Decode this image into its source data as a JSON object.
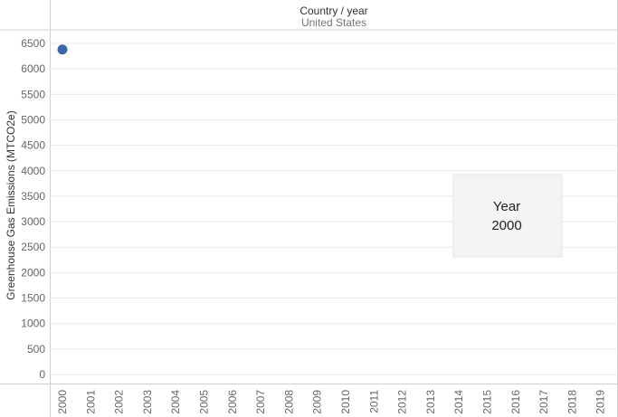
{
  "chart_data": {
    "type": "scatter",
    "header": {
      "title": "Country / year",
      "subtitle": "United States"
    },
    "ylabel": "Greenhouse Gas Emissions (MTCO2e)",
    "ylim": [
      0,
      6500
    ],
    "y_ticks": [
      0,
      500,
      1000,
      1500,
      2000,
      2500,
      3000,
      3500,
      4000,
      4500,
      5000,
      5500,
      6000,
      6500
    ],
    "x_categories": [
      "2000",
      "2001",
      "2002",
      "2003",
      "2004",
      "2005",
      "2006",
      "2007",
      "2008",
      "2009",
      "2010",
      "2011",
      "2012",
      "2013",
      "2014",
      "2015",
      "2016",
      "2017",
      "2018",
      "2019"
    ],
    "points": [
      {
        "year": "2000",
        "value": 6380
      }
    ],
    "annotation": {
      "line1": "Year",
      "line2": "2000"
    },
    "point_color": "#3d68a8",
    "grid": true
  }
}
